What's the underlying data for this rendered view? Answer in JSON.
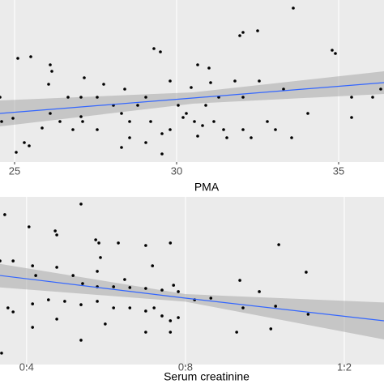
{
  "chart_data": [
    {
      "type": "scatter",
      "xlabel": "PMA",
      "xlim": [
        24.55,
        36.4
      ],
      "ylim": [
        0,
        100
      ],
      "xticks": [
        25,
        30,
        35
      ],
      "grid": true,
      "color": "#000000",
      "x": [
        33.6,
        32.05,
        31.95,
        32.5,
        34.9,
        34.8,
        25.5,
        25.1,
        26.1,
        26.15,
        29.3,
        29.5,
        30.65,
        31.0,
        31.05,
        30.45,
        27.15,
        27.75,
        27.05,
        27.55,
        24.55,
        24.6,
        24.95,
        25.3,
        25.45,
        25.05,
        26.1,
        27.05,
        27.1,
        28.3,
        28.55,
        28.55,
        28.3,
        29.05,
        29.55,
        29.8,
        30.05,
        30.55,
        30.8,
        31.15,
        31.55,
        32.05,
        32.3,
        32.8,
        33.05,
        33.55,
        34.05,
        35.4,
        35.4,
        36.3,
        36.05,
        33.3,
        32.05,
        31.3,
        29.05,
        28.8,
        28.05,
        26.65,
        26.8,
        27.55,
        30.3,
        30.65,
        30.9,
        31.8,
        29.8,
        32.55,
        26.05,
        25.85,
        26.4,
        29.55,
        30.2,
        31.45,
        29.2,
        28.4
      ],
      "values": [
        95,
        80,
        78,
        81,
        67,
        69,
        65,
        64,
        60,
        56,
        70,
        68,
        60,
        58,
        49,
        46,
        52,
        48,
        40,
        40,
        40,
        25,
        27,
        12,
        10,
        6,
        30,
        28,
        25,
        30,
        25,
        15,
        9,
        12,
        5,
        20,
        35,
        25,
        22.5,
        25,
        15,
        20,
        15,
        25,
        20,
        15,
        30,
        27.5,
        40,
        45,
        40,
        45,
        40,
        40,
        40,
        35,
        35,
        40,
        20,
        20,
        30,
        16,
        35,
        50,
        50,
        50,
        48,
        21,
        25,
        17.5,
        27.5,
        20,
        25,
        45
      ],
      "fit": {
        "color": "#3366FF",
        "x": [
          24.55,
          30.5,
          36.4
        ],
        "values": [
          30,
          39.5,
          49
        ],
        "lower": [
          22,
          36,
          42
        ],
        "upper": [
          38,
          43,
          56
        ]
      }
    },
    {
      "type": "scatter",
      "xlabel": "Serum creatinine",
      "xlim": [
        0.333,
        1.3
      ],
      "ylim": [
        0,
        100
      ],
      "xticks": [
        0.4,
        0.8,
        1.2
      ],
      "grid": true,
      "color": "#000000",
      "x": [
        0.345,
        0.406,
        0.472,
        0.476,
        0.537,
        0.574,
        0.582,
        0.586,
        0.631,
        0.7,
        0.717,
        0.762,
        1.035,
        0.333,
        0.366,
        0.415,
        0.423,
        0.476,
        0.517,
        0.541,
        0.578,
        0.619,
        0.66,
        0.7,
        0.741,
        0.77,
        0.782,
        0.353,
        0.366,
        0.415,
        0.455,
        0.496,
        0.537,
        0.578,
        0.619,
        0.66,
        0.7,
        0.721,
        0.741,
        0.762,
        0.782,
        0.823,
        0.864,
        0.937,
        0.945,
        0.986,
        1.027,
        1.104,
        1.109,
        1.015,
        0.929,
        0.762,
        0.7,
        0.598,
        0.537,
        0.476,
        0.337,
        0.415,
        0.578,
        0.647
      ],
      "values": [
        89.4,
        82.1,
        79.7,
        77.3,
        95.7,
        74.4,
        72.5,
        63.8,
        72.5,
        71.0,
        58.9,
        72.5,
        71.5,
        61.8,
        61.8,
        58.9,
        53.1,
        58.0,
        53.1,
        48.3,
        46.4,
        46.4,
        45.9,
        45.4,
        44.4,
        47.3,
        43.5,
        33.8,
        31.4,
        36.2,
        38.6,
        37.7,
        35.7,
        37.7,
        33.8,
        33.8,
        31.9,
        33.8,
        29.0,
        26.1,
        28.0,
        38.6,
        39.6,
        50.2,
        33.8,
        43.5,
        34.8,
        55.1,
        30.0,
        21.3,
        19.3,
        19.3,
        19.3,
        24.2,
        14.5,
        27.1,
        6.8,
        22.2,
        55.6,
        50.7
      ],
      "fit": {
        "color": "#3366FF",
        "x": [
          0.333,
          0.8,
          1.3
        ],
        "values": [
          53.1,
          39.6,
          26.1
        ],
        "lower": [
          46,
          37.5,
          15
        ],
        "upper": [
          60,
          42,
          37
        ]
      }
    }
  ]
}
